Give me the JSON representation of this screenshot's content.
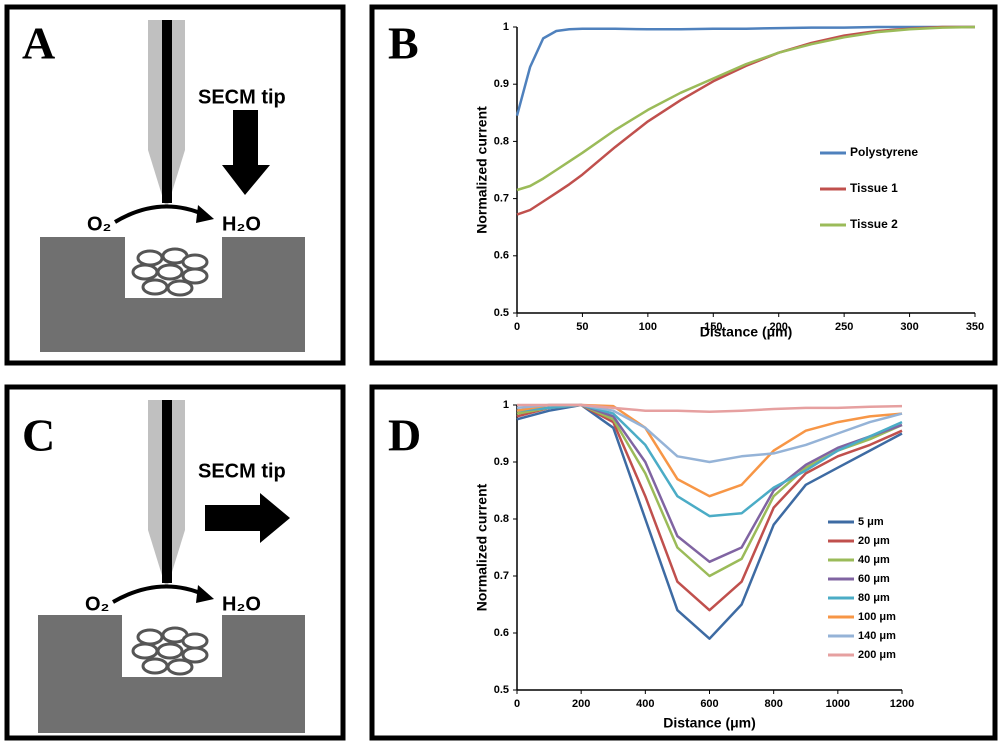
{
  "diagrams": [
    {
      "panel_label": "A",
      "tip_label": "SECM tip",
      "reactant": "O₂",
      "product": "H₂O"
    },
    {
      "panel_label": "C",
      "tip_label": "SECM tip",
      "reactant": "O₂",
      "product": "H₂O"
    }
  ],
  "chart_data": [
    {
      "type": "line",
      "panel_label": "B",
      "y_label": "Normalized current",
      "x_label": "Distance (μm)",
      "x": [
        0,
        10,
        20,
        30,
        40,
        50,
        75,
        100,
        125,
        150,
        175,
        200,
        225,
        250,
        275,
        300,
        325,
        350
      ],
      "series": [
        {
          "name": "Polystyrene",
          "color": "#4f81bd",
          "values": [
            0.845,
            0.93,
            0.98,
            0.993,
            0.996,
            0.997,
            0.997,
            0.996,
            0.996,
            0.997,
            0.997,
            0.998,
            0.999,
            0.999,
            1,
            1,
            1,
            1
          ]
        },
        {
          "name": "Tissue 1",
          "color": "#c0504d",
          "values": [
            0.672,
            0.68,
            0.695,
            0.71,
            0.725,
            0.742,
            0.79,
            0.835,
            0.872,
            0.905,
            0.932,
            0.955,
            0.972,
            0.985,
            0.993,
            0.997,
            1,
            1
          ]
        },
        {
          "name": "Tissue 2",
          "color": "#9bbb59",
          "values": [
            0.715,
            0.722,
            0.735,
            0.75,
            0.765,
            0.78,
            0.82,
            0.855,
            0.885,
            0.91,
            0.935,
            0.955,
            0.97,
            0.982,
            0.991,
            0.996,
            0.999,
            1
          ]
        }
      ],
      "xlim": [
        0,
        350
      ],
      "xticks": [
        0,
        50,
        100,
        150,
        200,
        250,
        300,
        350
      ],
      "ylim": [
        0.5,
        1
      ],
      "yticks": [
        0.5,
        0.6,
        0.7,
        0.8,
        0.9,
        1
      ],
      "legend": "right"
    },
    {
      "type": "line",
      "panel_label": "D",
      "y_label": "Normalized current",
      "x_label": "Distance (μm)",
      "x": [
        0,
        100,
        200,
        300,
        400,
        500,
        600,
        700,
        800,
        900,
        1000,
        1100,
        1200
      ],
      "series": [
        {
          "name": "5 μm",
          "color": "#3e6ba3",
          "values": [
            0.975,
            0.99,
            1,
            0.96,
            0.8,
            0.64,
            0.59,
            0.65,
            0.79,
            0.86,
            0.89,
            0.92,
            0.95
          ]
        },
        {
          "name": "20 μm",
          "color": "#c0504d",
          "values": [
            0.98,
            0.995,
            1,
            0.97,
            0.84,
            0.69,
            0.64,
            0.69,
            0.82,
            0.88,
            0.91,
            0.93,
            0.955
          ]
        },
        {
          "name": "40 μm",
          "color": "#9bbb59",
          "values": [
            0.985,
            0.995,
            1,
            0.975,
            0.88,
            0.75,
            0.7,
            0.73,
            0.84,
            0.89,
            0.92,
            0.94,
            0.965
          ]
        },
        {
          "name": "60 μm",
          "color": "#8064a2",
          "values": [
            0.99,
            0.995,
            1,
            0.98,
            0.9,
            0.77,
            0.725,
            0.75,
            0.85,
            0.895,
            0.925,
            0.945,
            0.965
          ]
        },
        {
          "name": "80 μm",
          "color": "#4bacc6",
          "values": [
            0.99,
            0.995,
            1,
            0.985,
            0.93,
            0.84,
            0.805,
            0.81,
            0.855,
            0.885,
            0.92,
            0.945,
            0.97
          ]
        },
        {
          "name": "100 μm",
          "color": "#f79646",
          "values": [
            0.99,
            1,
            1,
            0.998,
            0.96,
            0.87,
            0.84,
            0.86,
            0.92,
            0.955,
            0.97,
            0.98,
            0.985
          ]
        },
        {
          "name": "140 μm",
          "color": "#95b3d7",
          "values": [
            0.995,
            1,
            1,
            0.99,
            0.96,
            0.91,
            0.9,
            0.91,
            0.915,
            0.93,
            0.95,
            0.97,
            0.985
          ]
        },
        {
          "name": "200 μm",
          "color": "#e6a0a0",
          "values": [
            1,
            1,
            1,
            0.995,
            0.99,
            0.99,
            0.988,
            0.99,
            0.993,
            0.995,
            0.995,
            0.997,
            0.998
          ]
        }
      ],
      "xlim": [
        0,
        1200
      ],
      "xticks": [
        0,
        200,
        400,
        600,
        800,
        1000,
        1200
      ],
      "ylim": [
        0.5,
        1
      ],
      "yticks": [
        0.5,
        0.6,
        0.7,
        0.8,
        0.9,
        1
      ],
      "legend": "right"
    }
  ]
}
